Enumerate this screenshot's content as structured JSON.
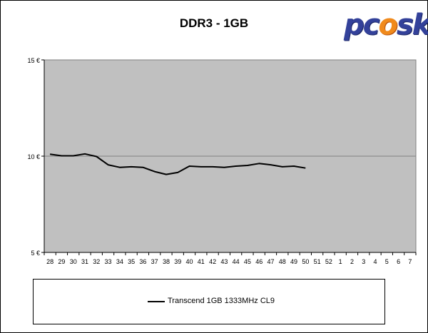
{
  "chart_data": {
    "type": "line",
    "title": "DDR3 - 1GB",
    "xlabel": "",
    "ylabel": "",
    "categories": [
      "28",
      "29",
      "30",
      "31",
      "32",
      "33",
      "34",
      "35",
      "36",
      "37",
      "38",
      "39",
      "40",
      "41",
      "42",
      "43",
      "44",
      "45",
      "46",
      "47",
      "48",
      "49",
      "50",
      "51",
      "52",
      "1",
      "2",
      "3",
      "4",
      "5",
      "6",
      "7"
    ],
    "ylim": [
      5,
      15
    ],
    "yticks": [
      5,
      10,
      15
    ],
    "ytick_labels": [
      "5 €",
      "10 €",
      "15 €"
    ],
    "grid": "horizontal",
    "legend_position": "bottom",
    "series": [
      {
        "name": "Transcend 1GB 1333MHz CL9",
        "color": "#000000",
        "values": [
          10.1,
          10.02,
          10.02,
          10.12,
          9.98,
          9.55,
          9.42,
          9.45,
          9.42,
          9.2,
          9.05,
          9.15,
          9.48,
          9.45,
          9.45,
          9.42,
          9.48,
          9.52,
          9.62,
          9.55,
          9.45,
          9.48,
          9.38,
          null,
          null,
          null,
          null,
          null,
          null,
          null,
          null,
          null
        ]
      }
    ]
  },
  "logo": {
    "text_a": "pc",
    "text_o": "o",
    "text_b": "sk"
  },
  "colors": {
    "plot_background": "#c0c0c0",
    "gridline": "#808080",
    "line": "#000000"
  }
}
